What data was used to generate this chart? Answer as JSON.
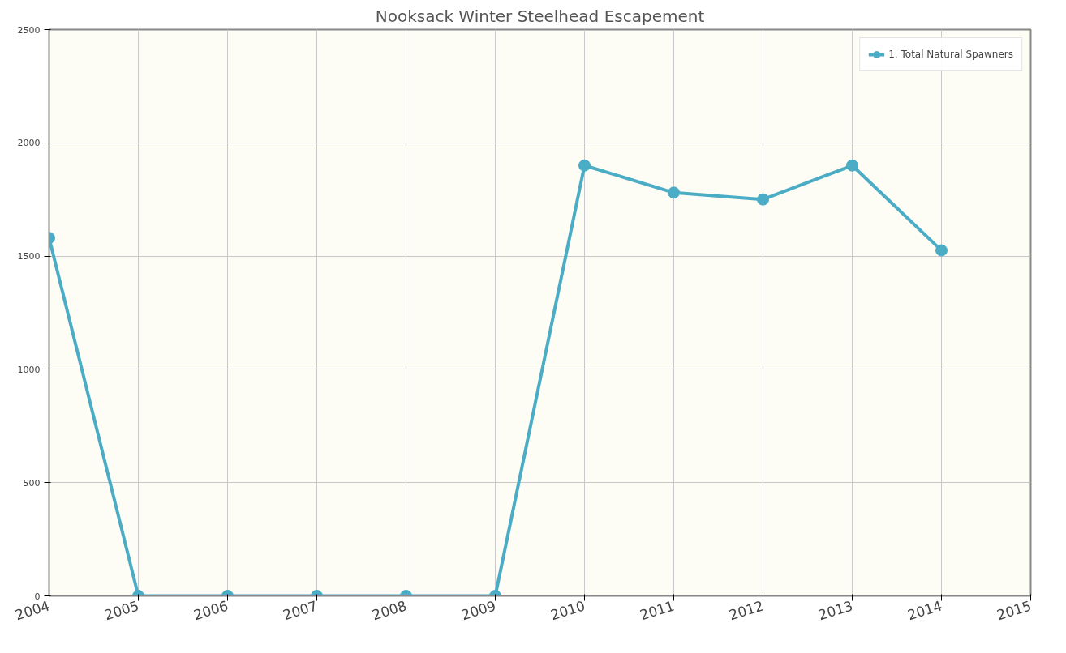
{
  "chart_data": {
    "type": "line",
    "title": "Nooksack Winter Steelhead Escapement",
    "x": [
      2004,
      2005,
      2006,
      2007,
      2008,
      2009,
      2010,
      2011,
      2012,
      2013,
      2014
    ],
    "series": [
      {
        "name": "1. Total Natural Spawners",
        "color": "#4bacc6",
        "values": [
          1580,
          0,
          0,
          0,
          0,
          0,
          1900,
          1780,
          1750,
          1900,
          1525
        ]
      }
    ],
    "xlim": [
      2004,
      2015
    ],
    "xticks": [
      2004,
      2005,
      2006,
      2007,
      2008,
      2009,
      2010,
      2011,
      2012,
      2013,
      2014,
      2015
    ],
    "ylim": [
      0,
      2500
    ],
    "yticks": [
      0,
      500,
      1000,
      1500,
      2000,
      2500
    ],
    "grid": true,
    "legend": "top right",
    "marker": "circle",
    "line_style": "solid"
  }
}
